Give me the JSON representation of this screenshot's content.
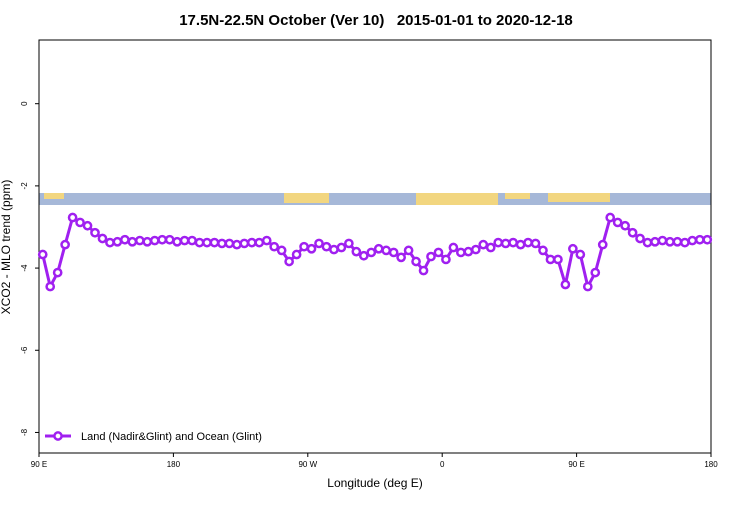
{
  "chart_data": {
    "type": "line",
    "title": "17.5N-22.5N October (Ver 10)   2015-01-01 to 2020-12-18",
    "xlabel": "Longitude (deg E)",
    "ylabel": "XCO2 - MLO trend (ppm)",
    "xlim": [
      90,
      540
    ],
    "ylim": [
      -8.5,
      1.55
    ],
    "xticks": [
      {
        "value": 90,
        "label": "90 E"
      },
      180,
      {
        "value": 270,
        "label": "90 W"
      },
      {
        "value": 360,
        "label": "0"
      },
      {
        "value": 450,
        "label": "90 E"
      },
      {
        "value": 540,
        "label": "180"
      }
    ],
    "yticks": [
      0,
      -2,
      -4,
      -6,
      -8
    ],
    "legend": "bottom-left",
    "x": [
      92.5,
      97.5,
      102.5,
      107.5,
      112.5,
      117.5,
      122.5,
      127.5,
      132.5,
      137.5,
      142.5,
      147.5,
      152.5,
      157.5,
      162.5,
      167.5,
      172.5,
      177.5,
      182.5,
      187.5,
      192.5,
      197.5,
      202.5,
      207.5,
      212.5,
      217.5,
      222.5,
      227.5,
      232.5,
      237.5,
      242.5,
      247.5,
      252.5,
      257.5,
      262.5,
      267.5,
      272.5,
      277.5,
      282.5,
      287.5,
      292.5,
      297.5,
      302.5,
      307.5,
      312.5,
      317.5,
      322.5,
      327.5,
      332.5,
      337.5,
      342.5,
      347.5,
      352.5,
      357.5,
      362.5,
      367.5,
      372.5,
      377.5,
      382.5,
      387.5,
      392.5,
      397.5,
      402.5,
      407.5,
      412.5,
      417.5,
      422.5,
      427.5,
      432.5,
      437.5,
      442.5,
      447.5,
      452.5,
      457.5,
      462.5,
      467.5,
      472.5,
      477.5,
      482.5,
      487.5,
      492.5,
      497.5,
      502.5,
      507.5,
      512.5,
      517.5,
      522.5,
      527.5,
      532.5,
      537.5
    ],
    "series": [
      {
        "name": "Land (Nadir&Glint) and Ocean (Glint)",
        "color": "#a020f0",
        "values": [
          -3.67,
          -4.45,
          -4.11,
          -3.43,
          -2.77,
          -2.89,
          -2.97,
          -3.14,
          -3.28,
          -3.38,
          -3.36,
          -3.31,
          -3.36,
          -3.33,
          -3.36,
          -3.33,
          -3.31,
          -3.31,
          -3.36,
          -3.33,
          -3.33,
          -3.38,
          -3.38,
          -3.38,
          -3.4,
          -3.4,
          -3.43,
          -3.4,
          -3.38,
          -3.38,
          -3.33,
          -3.48,
          -3.57,
          -3.84,
          -3.67,
          -3.48,
          -3.53,
          -3.4,
          -3.48,
          -3.55,
          -3.5,
          -3.4,
          -3.6,
          -3.7,
          -3.62,
          -3.53,
          -3.57,
          -3.62,
          -3.74,
          -3.57,
          -3.84,
          -4.06,
          -3.72,
          -3.62,
          -3.79,
          -3.5,
          -3.62,
          -3.6,
          -3.55,
          -3.43,
          -3.5,
          -3.38,
          -3.4,
          -3.38,
          -3.43,
          -3.38,
          -3.4,
          -3.57,
          -3.79,
          -3.79,
          -4.4,
          -3.53,
          -3.67,
          -4.45,
          -4.11,
          -3.43,
          -2.77,
          -2.89,
          -2.97,
          -3.14,
          -3.28,
          -3.38,
          -3.36,
          -3.33,
          -3.36,
          -3.36,
          -3.38,
          -3.33,
          -3.31,
          -3.31
        ]
      }
    ]
  }
}
